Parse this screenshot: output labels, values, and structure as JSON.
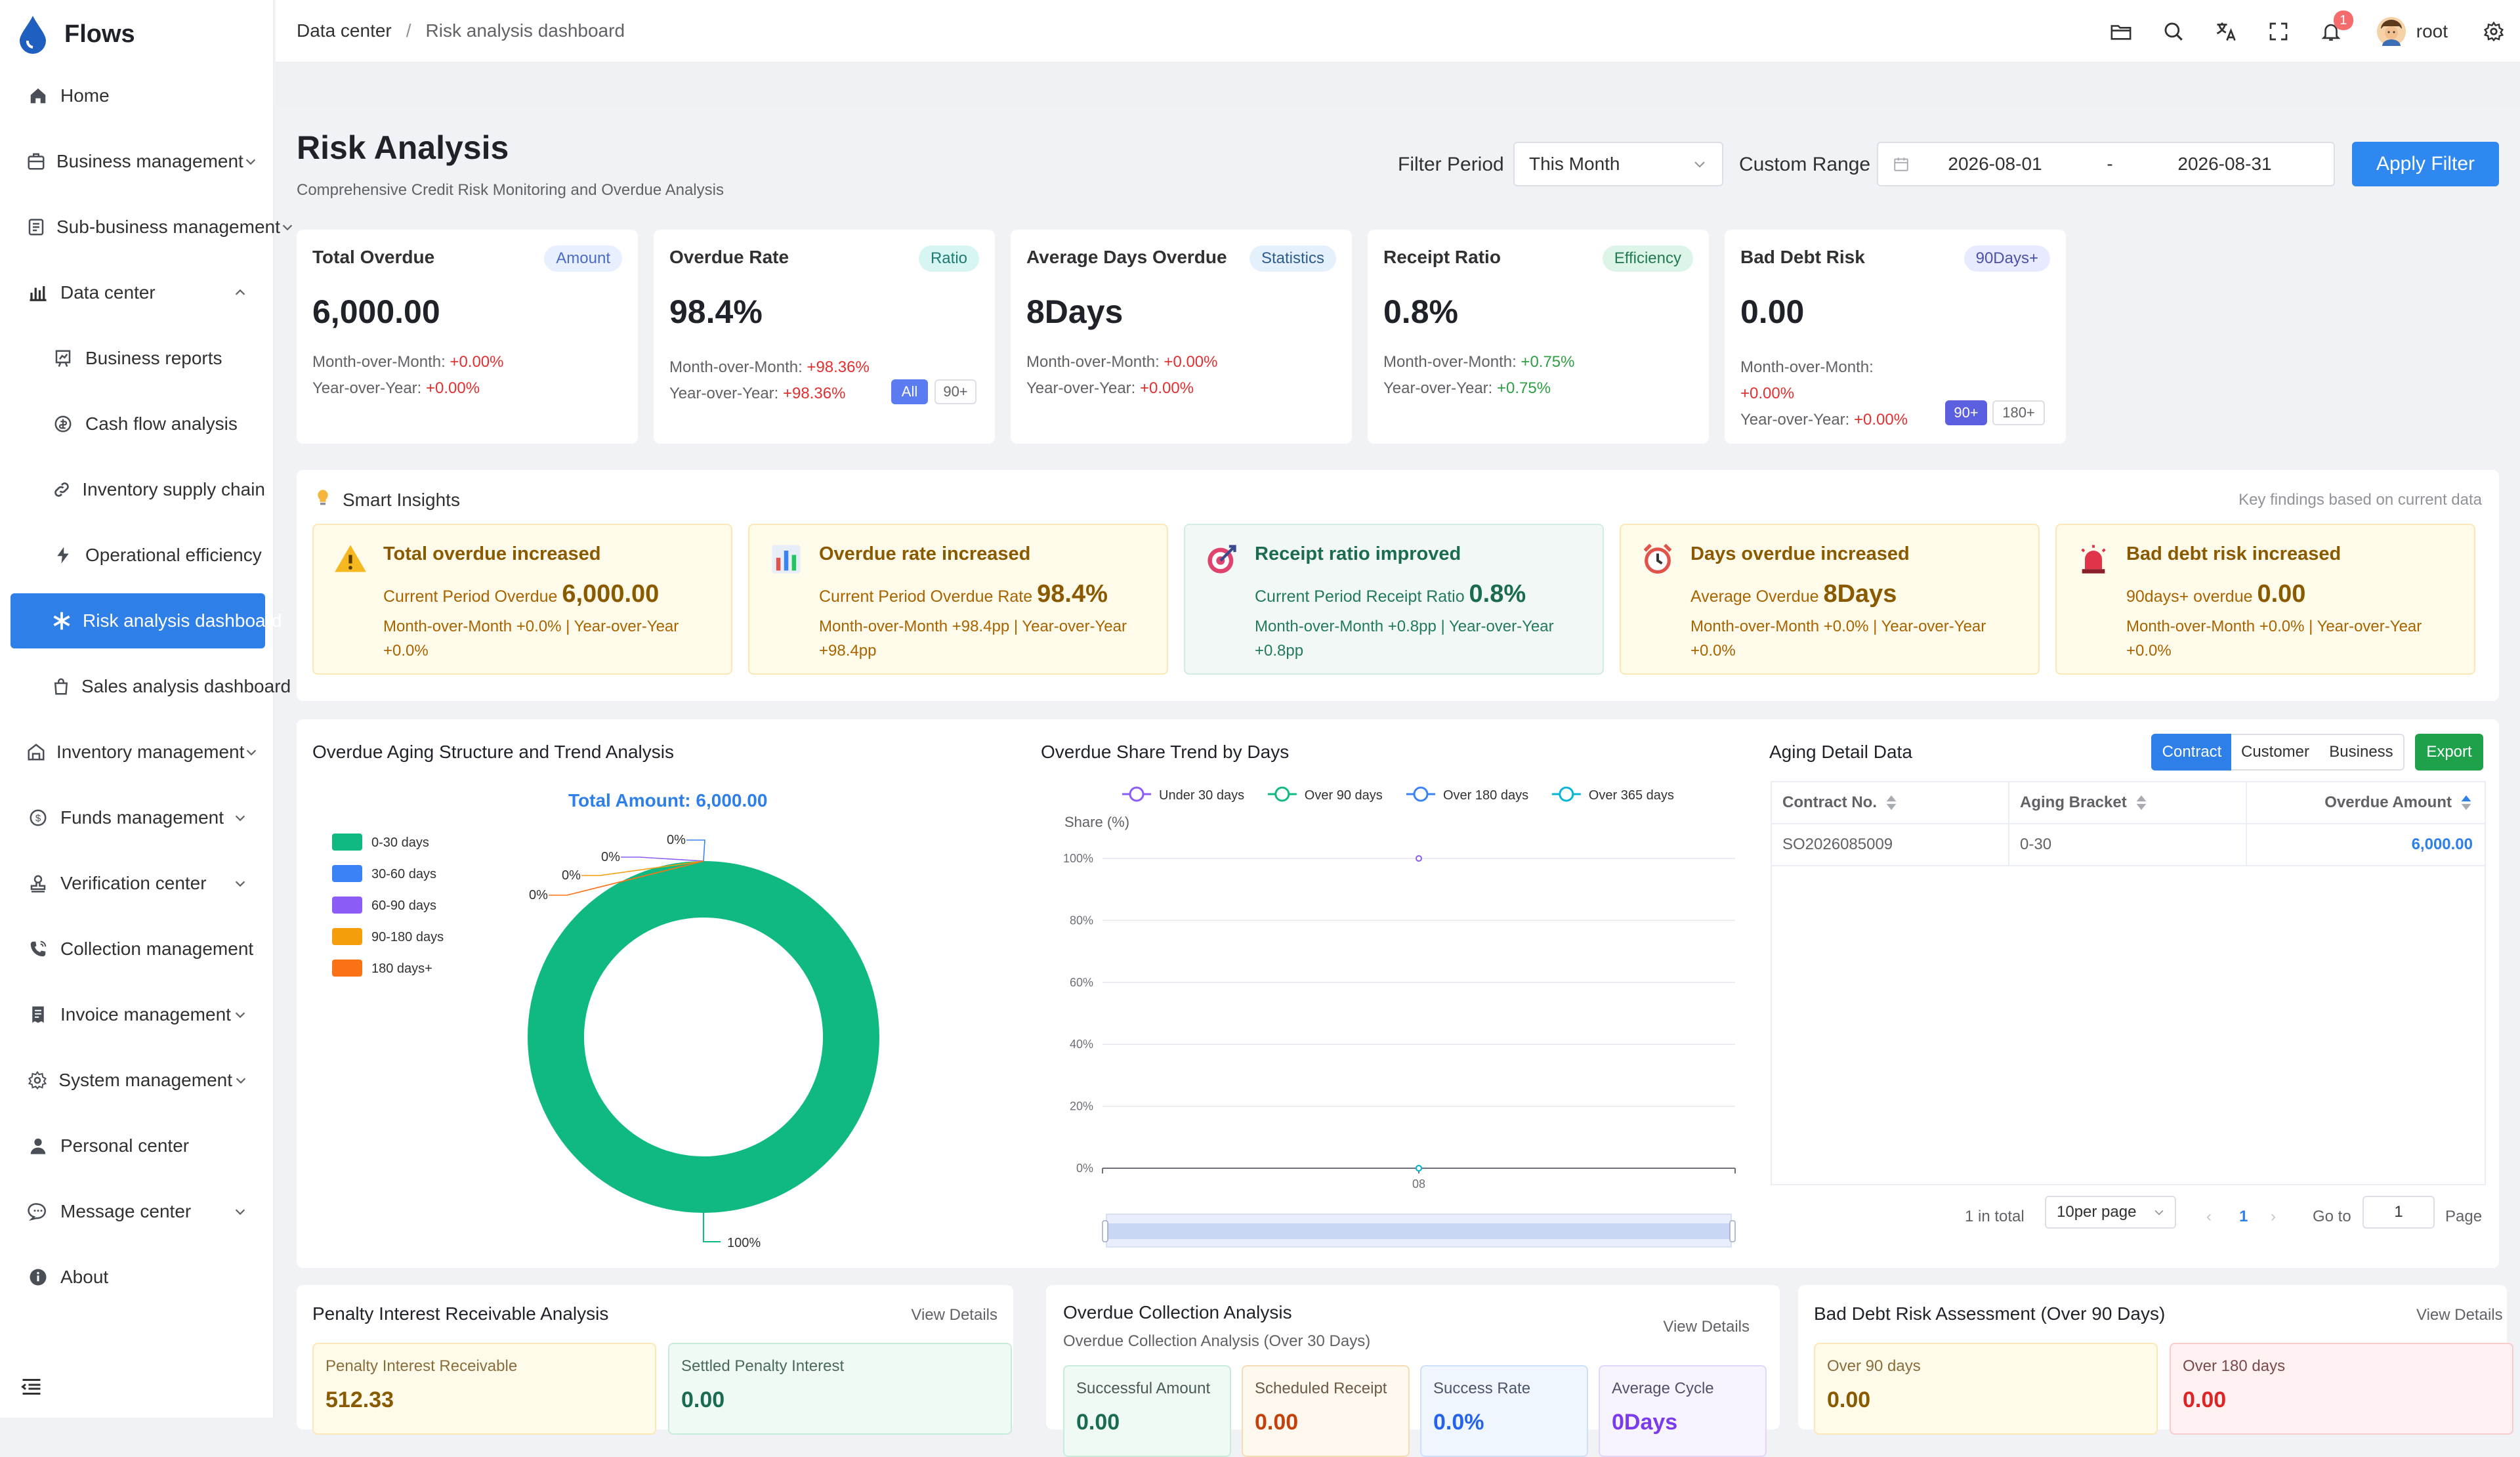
{
  "app": {
    "name": "Flows"
  },
  "sidebar": {
    "items": [
      {
        "label": "Home"
      },
      {
        "label": "Business management"
      },
      {
        "label": "Sub-business management"
      },
      {
        "label": "Data center"
      },
      {
        "label": "Business reports"
      },
      {
        "label": "Cash flow analysis"
      },
      {
        "label": "Inventory supply chain"
      },
      {
        "label": "Operational efficiency"
      },
      {
        "label": "Risk analysis dashboard"
      },
      {
        "label": "Sales analysis dashboard"
      },
      {
        "label": "Inventory management"
      },
      {
        "label": "Funds management"
      },
      {
        "label": "Verification center"
      },
      {
        "label": "Collection management"
      },
      {
        "label": "Invoice management"
      },
      {
        "label": "System management"
      },
      {
        "label": "Personal center"
      },
      {
        "label": "Message center"
      },
      {
        "label": "About"
      }
    ]
  },
  "header": {
    "breadcrumb": [
      "Data center",
      "Risk analysis dashboard"
    ],
    "separator": "/",
    "notification_count": "1",
    "user": "root"
  },
  "page": {
    "title": "Risk Analysis",
    "subtitle": "Comprehensive Credit Risk Monitoring and Overdue Analysis"
  },
  "filter": {
    "period_label": "Filter Period",
    "period_value": "This Month",
    "custom_label": "Custom Range",
    "start_date": "2026-08-01",
    "range_sep": "-",
    "end_date": "2026-08-31",
    "apply_label": "Apply Filter"
  },
  "kpis": [
    {
      "title": "Total Overdue",
      "badge": "Amount",
      "value": "6,000.00",
      "mom_label": "Month-over-Month:",
      "mom": "+0.00%",
      "yoy_label": "Year-over-Year:",
      "yoy": "+0.00%"
    },
    {
      "title": "Overdue Rate",
      "badge": "Ratio",
      "value": "98.4%",
      "mom_label": "Month-over-Month:",
      "mom": "+98.36%",
      "yoy_label": "Year-over-Year:",
      "yoy": "+98.36%",
      "opt1": "All",
      "opt2": "90+"
    },
    {
      "title": "Average Days Overdue",
      "badge": "Statistics",
      "value": "8Days",
      "mom_label": "Month-over-Month:",
      "mom": "+0.00%",
      "yoy_label": "Year-over-Year:",
      "yoy": "+0.00%"
    },
    {
      "title": "Receipt Ratio",
      "badge": "Efficiency",
      "value": "0.8%",
      "mom_label": "Month-over-Month:",
      "mom": "+0.75%",
      "yoy_label": "Year-over-Year:",
      "yoy": "+0.75%"
    },
    {
      "title": "Bad Debt Risk",
      "badge": "90Days+",
      "value": "0.00",
      "mom_label": "Month-over-Month:",
      "mom": "+0.00%",
      "yoy_label": "Year-over-Year:",
      "yoy": "+0.00%",
      "opt1": "90+",
      "opt2": "180+"
    }
  ],
  "insights": {
    "title": "Smart Insights",
    "note": "Key findings based on current data",
    "items": [
      {
        "title": "Total overdue increased",
        "prefix": "Current Period Overdue",
        "value": "6,000.00",
        "detail": "Month-over-Month +0.0% | Year-over-Year +0.0%"
      },
      {
        "title": "Overdue rate increased",
        "prefix": "Current Period Overdue Rate",
        "value": "98.4%",
        "detail": "Month-over-Month +98.4pp | Year-over-Year +98.4pp"
      },
      {
        "title": "Receipt ratio improved",
        "prefix": "Current Period Receipt Ratio",
        "value": "0.8%",
        "detail": "Month-over-Month +0.8pp | Year-over-Year +0.8pp"
      },
      {
        "title": "Days overdue increased",
        "prefix": "Average Overdue",
        "value": "8Days",
        "detail": "Month-over-Month +0.0% | Year-over-Year +0.0%"
      },
      {
        "title": "Bad debt risk increased",
        "prefix": "90days+ overdue",
        "value": "0.00",
        "detail": "Month-over-Month +0.0% | Year-over-Year +0.0%"
      }
    ]
  },
  "aging_chart": {
    "title": "Overdue Aging Structure and Trend Analysis",
    "total_label": "Total Amount: 6,000.00"
  },
  "trend_chart": {
    "title": "Overdue Share Trend by Days"
  },
  "aging_table": {
    "title": "Aging Detail Data",
    "tabs": [
      "Contract",
      "Customer",
      "Business"
    ],
    "export_label": "Export",
    "columns": [
      "Contract No.",
      "Aging Bracket",
      "Overdue Amount"
    ],
    "rows": [
      [
        "SO2026085009",
        "0-30",
        "6,000.00"
      ]
    ],
    "pagination": {
      "total": "1 in total",
      "per_page": "10per page",
      "page": "1",
      "goto_label": "Go to",
      "goto_value": "1",
      "page_label": "Page"
    }
  },
  "bottom": {
    "penalty": {
      "title": "Penalty Interest Receivable Analysis",
      "link": "View Details",
      "cards": [
        {
          "label": "Penalty Interest Receivable",
          "value": "512.33"
        },
        {
          "label": "Settled Penalty Interest",
          "value": "0.00"
        }
      ]
    },
    "collection": {
      "title": "Overdue Collection Analysis",
      "subtitle": "Overdue Collection Analysis (Over 30 Days)",
      "link": "View Details",
      "cards": [
        {
          "label": "Successful Amount",
          "value": "0.00"
        },
        {
          "label": "Scheduled Receipt",
          "value": "0.00"
        },
        {
          "label": "Success Rate",
          "value": "0.0%"
        },
        {
          "label": "Average Cycle",
          "value": "0Days"
        }
      ]
    },
    "baddebt": {
      "title": "Bad Debt Risk Assessment (Over 90 Days)",
      "link": "View Details",
      "cards": [
        {
          "label": "Over 90 days",
          "value": "0.00"
        },
        {
          "label": "Over 180 days",
          "value": "0.00"
        }
      ]
    }
  },
  "chart_data": [
    {
      "type": "pie",
      "title": "Total Amount: 6,000.00",
      "categories": [
        "0-30 days",
        "30-60 days",
        "60-90 days",
        "90-180 days",
        "180 days+"
      ],
      "values": [
        100,
        0,
        0,
        0,
        0
      ],
      "value_labels": [
        "100%",
        "0%",
        "0%",
        "0%",
        "0%"
      ],
      "colors": [
        "#10b981",
        "#3b82f6",
        "#8b5cf6",
        "#f59e0b",
        "#f97316"
      ],
      "legend_position": "left",
      "donut": true
    },
    {
      "type": "line",
      "title": "Overdue Share Trend by Days",
      "ylabel": "Share (%)",
      "x": [
        "08"
      ],
      "ylim": [
        0,
        100
      ],
      "yticks": [
        "0%",
        "20%",
        "40%",
        "60%",
        "80%",
        "100%"
      ],
      "series": [
        {
          "name": "Under 30 days",
          "values": [
            100
          ],
          "color": "#8b5cf6"
        },
        {
          "name": "Over 90 days",
          "values": [
            0
          ],
          "color": "#10b981"
        },
        {
          "name": "Over 180 days",
          "values": [
            0
          ],
          "color": "#3b82f6"
        },
        {
          "name": "Over 365 days",
          "values": [
            0
          ],
          "color": "#06b6d4"
        }
      ],
      "legend_position": "top",
      "grid": true
    }
  ]
}
